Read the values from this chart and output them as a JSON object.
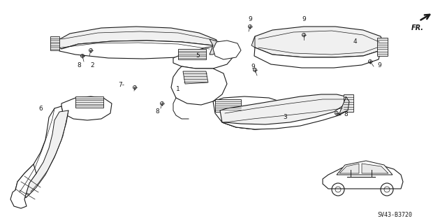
{
  "bg_color": "#ffffff",
  "diagram_number": "SV43-B3720",
  "fr_label": "FR.",
  "line_color": "#1a1a1a",
  "label_fontsize": 6.5
}
